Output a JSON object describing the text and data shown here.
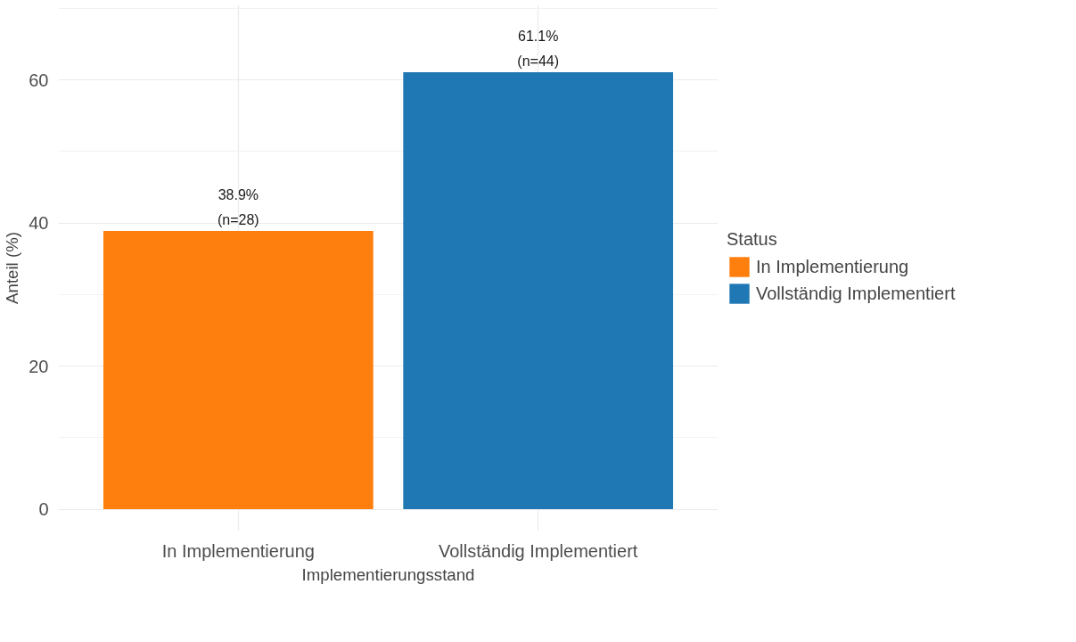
{
  "chart_data": {
    "type": "bar",
    "xlabel": "Implementierungsstand",
    "ylabel": "Anteil (%)",
    "legend_title": "Status",
    "categories": [
      "In Implementierung",
      "Vollständig Implementiert"
    ],
    "series": [
      {
        "name": "In Implementierung",
        "color": "#ff7f0e",
        "values": [
          38.9,
          null
        ],
        "value_labels": [
          "38.9%\n(n=28)",
          null
        ]
      },
      {
        "name": "Vollständig Implementiert",
        "color": "#1f77b4",
        "values": [
          null,
          61.1
        ],
        "value_labels": [
          null,
          "61.1%\n(n=44)"
        ]
      }
    ],
    "ylim": [
      -3.05,
      70.5
    ],
    "yticks": [
      0,
      {
        "value": 10,
        "label": null
      },
      20,
      {
        "value": 30,
        "label": null
      },
      40,
      {
        "value": 50,
        "label": null
      },
      60,
      {
        "value": 70,
        "label": null
      }
    ],
    "grid": true,
    "legend": "right"
  }
}
